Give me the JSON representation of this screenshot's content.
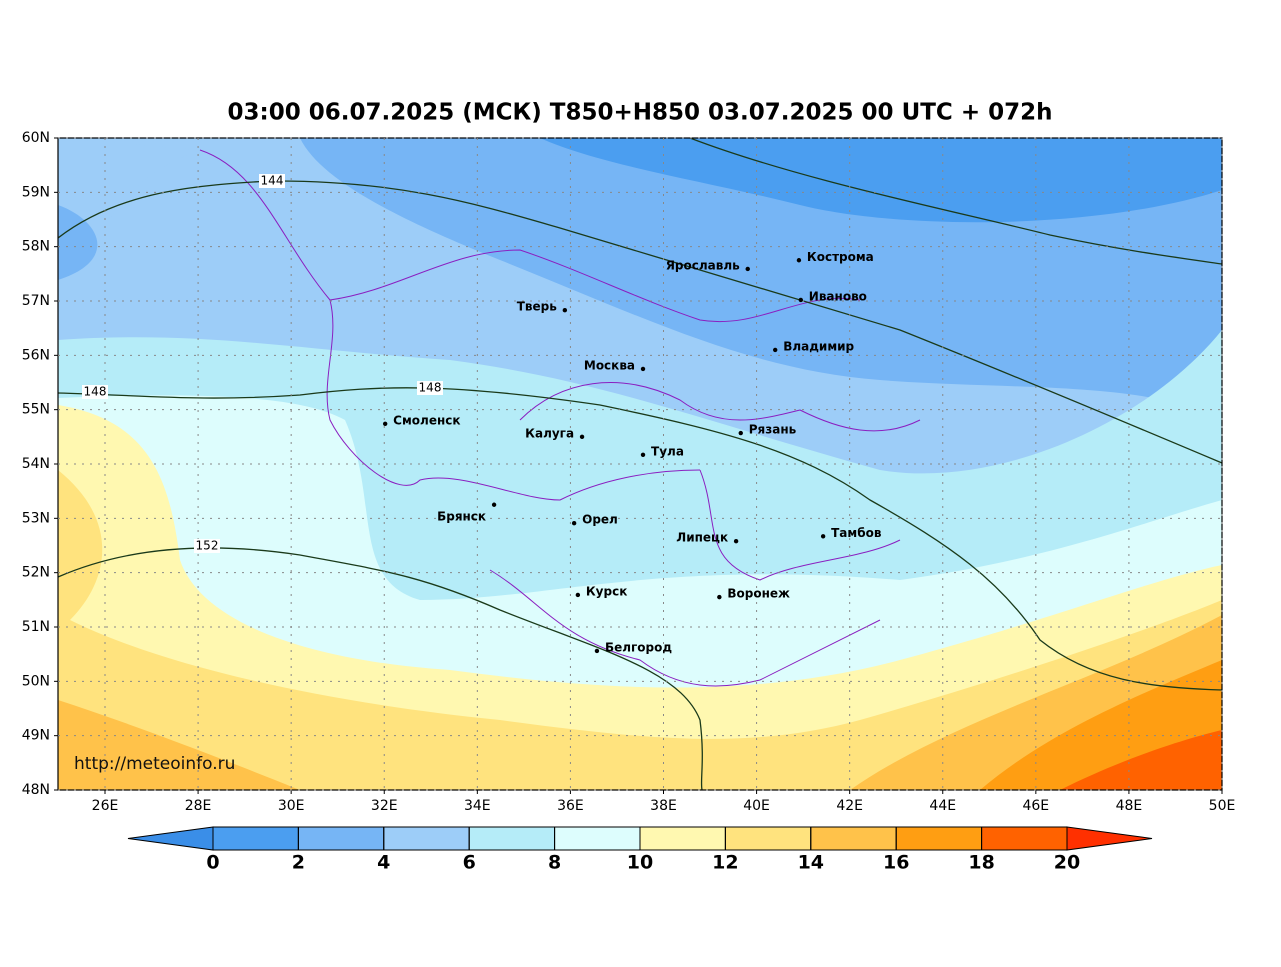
{
  "title": "03:00 06.07.2025 (МСК) T850+H850 03.07.2025 00 UTC + 072h",
  "watermark": "http://meteoinfo.ru",
  "lon_ticks": [
    {
      "value": 26,
      "label": "26E"
    },
    {
      "value": 28,
      "label": "28E"
    },
    {
      "value": 30,
      "label": "30E"
    },
    {
      "value": 32,
      "label": "32E"
    },
    {
      "value": 34,
      "label": "34E"
    },
    {
      "value": 36,
      "label": "36E"
    },
    {
      "value": 38,
      "label": "38E"
    },
    {
      "value": 40,
      "label": "40E"
    },
    {
      "value": 42,
      "label": "42E"
    },
    {
      "value": 44,
      "label": "44E"
    },
    {
      "value": 46,
      "label": "46E"
    },
    {
      "value": 48,
      "label": "48E"
    },
    {
      "value": 50,
      "label": "50E"
    }
  ],
  "lat_ticks": [
    {
      "value": 60,
      "label": "60N"
    },
    {
      "value": 59,
      "label": "59N"
    },
    {
      "value": 58,
      "label": "58N"
    },
    {
      "value": 57,
      "label": "57N"
    },
    {
      "value": 56,
      "label": "56N"
    },
    {
      "value": 55,
      "label": "55N"
    },
    {
      "value": 54,
      "label": "54N"
    },
    {
      "value": 53,
      "label": "53N"
    },
    {
      "value": 52,
      "label": "52N"
    },
    {
      "value": 51,
      "label": "51N"
    },
    {
      "value": 50,
      "label": "50N"
    },
    {
      "value": 49,
      "label": "49N"
    },
    {
      "value": 48,
      "label": "48N"
    }
  ],
  "cities": [
    {
      "name": "Кострома",
      "lon": 40.91,
      "lat": 57.75
    },
    {
      "name": "Ярославль",
      "lon": 39.81,
      "lat": 57.59
    },
    {
      "name": "Иваново",
      "lon": 40.95,
      "lat": 57.02
    },
    {
      "name": "Тверь",
      "lon": 35.88,
      "lat": 56.83
    },
    {
      "name": "Владимир",
      "lon": 40.4,
      "lat": 56.1
    },
    {
      "name": "Москва",
      "lon": 37.56,
      "lat": 55.75
    },
    {
      "name": "Смоленск",
      "lon": 32.02,
      "lat": 54.74
    },
    {
      "name": "Рязань",
      "lon": 39.66,
      "lat": 54.57
    },
    {
      "name": "Калуга",
      "lon": 36.25,
      "lat": 54.5
    },
    {
      "name": "Тула",
      "lon": 37.56,
      "lat": 54.17
    },
    {
      "name": "Брянск",
      "lon": 34.36,
      "lat": 53.25
    },
    {
      "name": "Орел",
      "lon": 36.08,
      "lat": 52.91
    },
    {
      "name": "Липецк",
      "lon": 39.56,
      "lat": 52.58
    },
    {
      "name": "Тамбов",
      "lon": 41.43,
      "lat": 52.67
    },
    {
      "name": "Курск",
      "lon": 36.16,
      "lat": 51.59
    },
    {
      "name": "Воронеж",
      "lon": 39.2,
      "lat": 51.55
    },
    {
      "name": "Белгород",
      "lon": 36.57,
      "lat": 50.56
    }
  ],
  "contour_labels": [
    144,
    148,
    148,
    152
  ],
  "colorbar": {
    "ticks": [
      0,
      2,
      4,
      6,
      8,
      10,
      12,
      14,
      16,
      18,
      20
    ],
    "colors": [
      "#4b9ef0",
      "#76b5f5",
      "#9dcdf8",
      "#b5ecf8",
      "#ddfdfd",
      "#fff8b0",
      "#ffe37e",
      "#ffc24a",
      "#ff9e12",
      "#ff6200"
    ],
    "under": "#3a8ee8",
    "over": "#ff3000"
  }
}
